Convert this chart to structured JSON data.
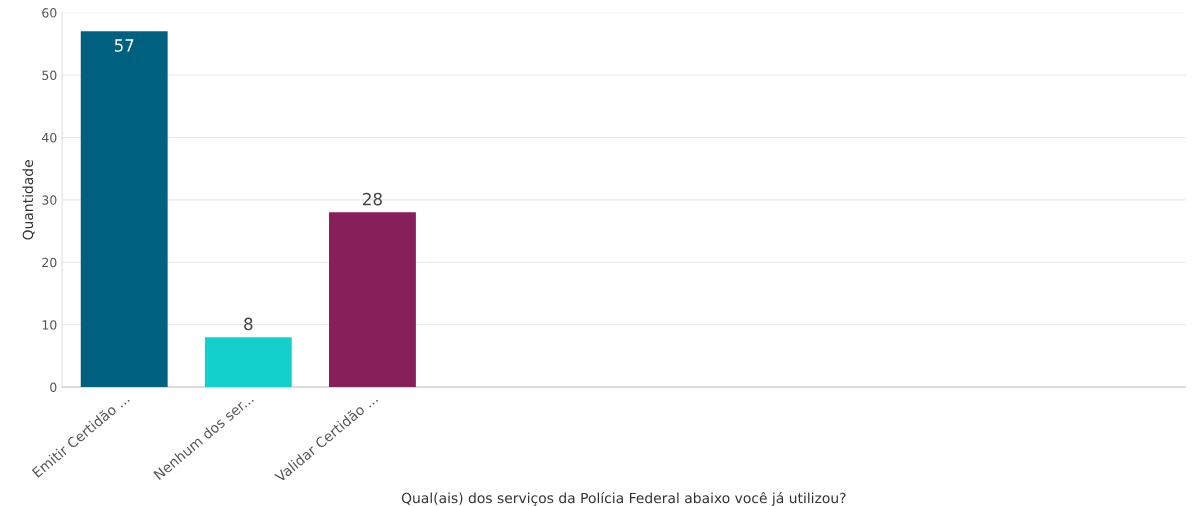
{
  "chart_data": {
    "type": "bar",
    "xlabel": "Qual(ais) dos serviços da Polícia Federal abaixo você já utilizou?",
    "ylabel": "Quantidade",
    "categories": [
      "Emitir Certidão ...",
      "Nenhum dos ser...",
      "Validar Certidão ..."
    ],
    "values": [
      57,
      8,
      28
    ],
    "colors": [
      "#00607f",
      "#14d0cc",
      "#871f5a"
    ],
    "ylim": [
      0,
      60
    ],
    "yticks": [
      0,
      10,
      20,
      30,
      40,
      50,
      60
    ],
    "grid": "y",
    "data_labels": true
  }
}
